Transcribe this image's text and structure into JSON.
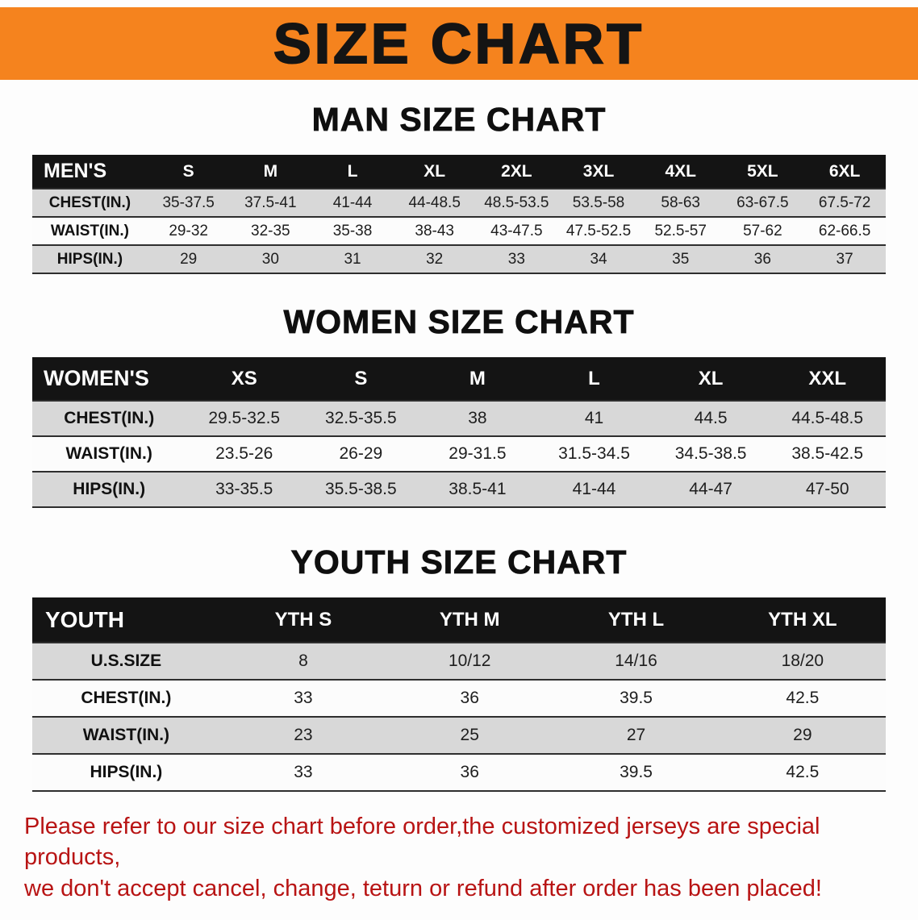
{
  "banner": {
    "title": "SIZE CHART",
    "bg_color": "#f5831e"
  },
  "sections": {
    "men": {
      "heading": "MAN SIZE CHART",
      "header": [
        "MEN'S",
        "S",
        "M",
        "L",
        "XL",
        "2XL",
        "3XL",
        "4XL",
        "5XL",
        "6XL"
      ],
      "rows": [
        {
          "label": "CHEST(IN.)",
          "values": [
            "35-37.5",
            "37.5-41",
            "41-44",
            "44-48.5",
            "48.5-53.5",
            "53.5-58",
            "58-63",
            "63-67.5",
            "67.5-72"
          ]
        },
        {
          "label": "WAIST(IN.)",
          "values": [
            "29-32",
            "32-35",
            "35-38",
            "38-43",
            "43-47.5",
            "47.5-52.5",
            "52.5-57",
            "57-62",
            "62-66.5"
          ]
        },
        {
          "label": "HIPS(IN.)",
          "values": [
            "29",
            "30",
            "31",
            "32",
            "33",
            "34",
            "35",
            "36",
            "37"
          ]
        }
      ]
    },
    "women": {
      "heading": "WOMEN SIZE CHART",
      "header": [
        "WOMEN'S",
        "XS",
        "S",
        "M",
        "L",
        "XL",
        "XXL"
      ],
      "rows": [
        {
          "label": "CHEST(IN.)",
          "values": [
            "29.5-32.5",
            "32.5-35.5",
            "38",
            "41",
            "44.5",
            "44.5-48.5"
          ]
        },
        {
          "label": "WAIST(IN.)",
          "values": [
            "23.5-26",
            "26-29",
            "29-31.5",
            "31.5-34.5",
            "34.5-38.5",
            "38.5-42.5"
          ]
        },
        {
          "label": "HIPS(IN.)",
          "values": [
            "33-35.5",
            "35.5-38.5",
            "38.5-41",
            "41-44",
            "44-47",
            "47-50"
          ]
        }
      ]
    },
    "youth": {
      "heading": "YOUTH SIZE CHART",
      "header": [
        "YOUTH",
        "YTH S",
        "YTH M",
        "YTH L",
        "YTH XL"
      ],
      "rows": [
        {
          "label": "U.S.SIZE",
          "values": [
            "8",
            "10/12",
            "14/16",
            "18/20"
          ]
        },
        {
          "label": "CHEST(IN.)",
          "values": [
            "33",
            "36",
            "39.5",
            "42.5"
          ]
        },
        {
          "label": "WAIST(IN.)",
          "values": [
            "23",
            "25",
            "27",
            "29"
          ]
        },
        {
          "label": "HIPS(IN.)",
          "values": [
            "33",
            "36",
            "39.5",
            "42.5"
          ]
        }
      ]
    }
  },
  "footer": {
    "line1": "Please refer to our size chart before order,the customized jerseys are special products,",
    "line2": "we don't accept cancel, change, teturn or refund after order has been placed!"
  }
}
